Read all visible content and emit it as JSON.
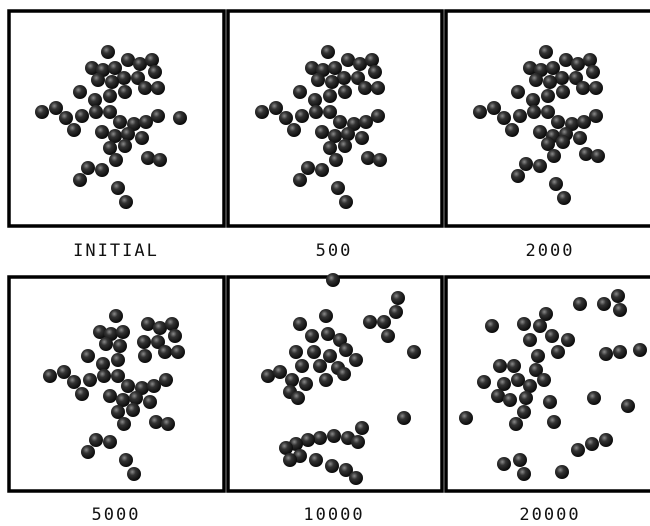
{
  "panels": [
    {
      "label": "INITIAL"
    },
    {
      "label": "500"
    },
    {
      "label": "2000"
    },
    {
      "label": "5000"
    },
    {
      "label": "10000"
    },
    {
      "label": "20000"
    }
  ]
}
